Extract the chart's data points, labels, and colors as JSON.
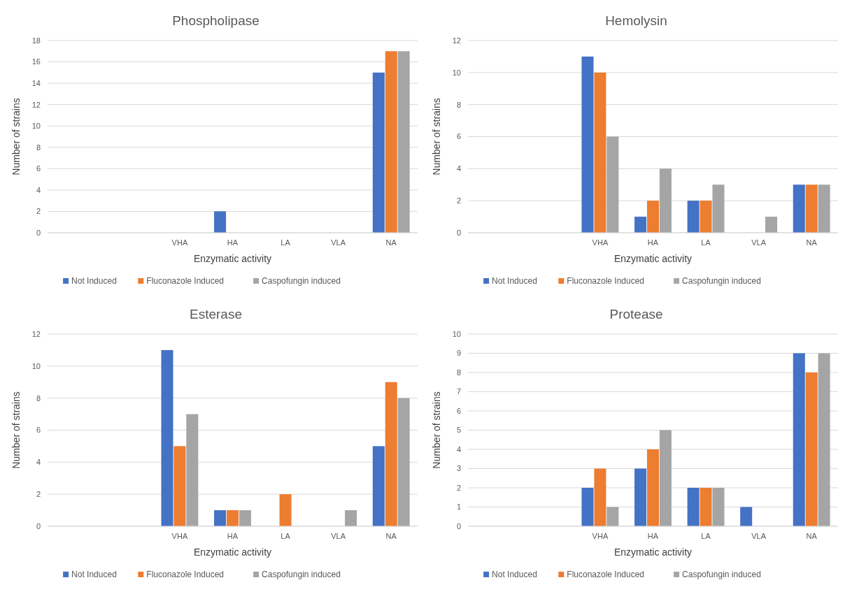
{
  "chart_data": [
    {
      "type": "bar",
      "title": "Phospholipase",
      "xlabel": "Enzymatic activity",
      "ylabel": "Number of strains",
      "categories": [
        null,
        null,
        "VHA",
        "HA",
        "LA",
        "VLA",
        "NA"
      ],
      "series": [
        {
          "name": "Not Induced",
          "color": "#4472c4",
          "values": [
            0,
            0,
            0,
            2,
            0,
            0,
            15
          ]
        },
        {
          "name": "Fluconazole Induced",
          "color": "#ed7d31",
          "values": [
            0,
            0,
            0,
            0,
            0,
            0,
            17
          ]
        },
        {
          "name": "Caspofungin induced",
          "color": "#a5a5a5",
          "values": [
            0,
            0,
            0,
            0,
            0,
            0,
            17
          ]
        }
      ],
      "ylim": [
        0,
        18
      ],
      "yticks": [
        0,
        2,
        4,
        6,
        8,
        10,
        12,
        14,
        16,
        18
      ],
      "grid": "y",
      "legend": "bottom"
    },
    {
      "type": "bar",
      "title": "Hemolysin",
      "xlabel": "Enzymatic activity",
      "ylabel": "Number of strains",
      "categories": [
        null,
        null,
        "VHA",
        "HA",
        "LA",
        "VLA",
        "NA"
      ],
      "series": [
        {
          "name": "Not Induced",
          "color": "#4472c4",
          "values": [
            0,
            0,
            11,
            1,
            2,
            0,
            3
          ]
        },
        {
          "name": "Fluconazole Induced",
          "color": "#ed7d31",
          "values": [
            0,
            0,
            10,
            2,
            2,
            0,
            3
          ]
        },
        {
          "name": "Caspofungin induced",
          "color": "#a5a5a5",
          "values": [
            0,
            0,
            6,
            4,
            3,
            1,
            3
          ]
        }
      ],
      "ylim": [
        0,
        12
      ],
      "yticks": [
        0,
        2,
        4,
        6,
        8,
        10,
        12
      ],
      "grid": "y",
      "legend": "bottom"
    },
    {
      "type": "bar",
      "title": "Esterase",
      "xlabel": "Enzymatic activity",
      "ylabel": "Number of strains",
      "categories": [
        null,
        null,
        "VHA",
        "HA",
        "LA",
        "VLA",
        "NA"
      ],
      "series": [
        {
          "name": "Not Induced",
          "color": "#4472c4",
          "values": [
            0,
            0,
            11,
            1,
            0,
            0,
            5
          ]
        },
        {
          "name": "Fluconazole Induced",
          "color": "#ed7d31",
          "values": [
            0,
            0,
            5,
            1,
            2,
            0,
            9
          ]
        },
        {
          "name": "Caspofungin induced",
          "color": "#a5a5a5",
          "values": [
            0,
            0,
            7,
            1,
            0,
            1,
            8
          ]
        }
      ],
      "ylim": [
        0,
        12
      ],
      "yticks": [
        0,
        2,
        4,
        6,
        8,
        10,
        12
      ],
      "grid": "y",
      "legend": "bottom"
    },
    {
      "type": "bar",
      "title": "Protease",
      "xlabel": "Enzymatic activity",
      "ylabel": "Number of strains",
      "categories": [
        null,
        null,
        "VHA",
        "HA",
        "LA",
        "VLA",
        "NA"
      ],
      "series": [
        {
          "name": "Not Induced",
          "color": "#4472c4",
          "values": [
            0,
            0,
            2,
            3,
            2,
            1,
            9
          ]
        },
        {
          "name": "Fluconazole Induced",
          "color": "#ed7d31",
          "values": [
            0,
            0,
            3,
            4,
            2,
            0,
            8
          ]
        },
        {
          "name": "Caspofungin induced",
          "color": "#a5a5a5",
          "values": [
            0,
            0,
            1,
            5,
            2,
            0,
            9
          ]
        }
      ],
      "ylim": [
        0,
        10
      ],
      "yticks": [
        0,
        1,
        2,
        3,
        4,
        5,
        6,
        7,
        8,
        9,
        10
      ],
      "grid": "y",
      "legend": "bottom"
    }
  ]
}
